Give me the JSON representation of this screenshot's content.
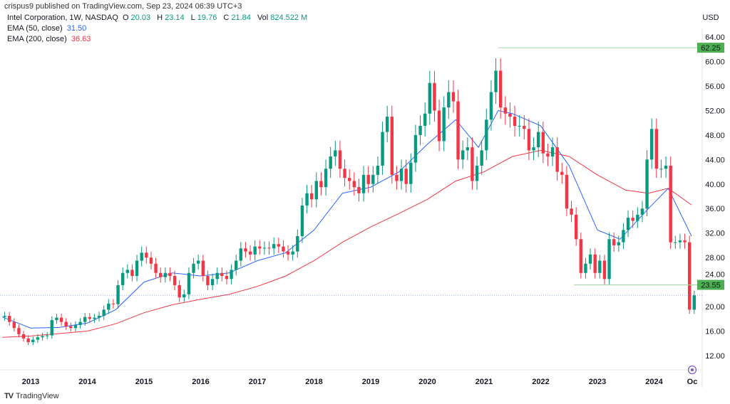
{
  "header": {
    "published": "crispus9 published on TradingView.com, Sep 23, 2024 06:39 UTC+3"
  },
  "legend": {
    "symbol": "Intel Corporation, 1W, NASDAQ",
    "o_label": "O",
    "o": "20.03",
    "h_label": "H",
    "h": "23.14",
    "l_label": "L",
    "l": "19.76",
    "c_label": "C",
    "c": "21.84",
    "vol_label": "Vol",
    "vol": "824.522 M",
    "ema50_label": "EMA (50, close)",
    "ema50": "31.50",
    "ema200_label": "EMA (200, close)",
    "ema200": "36.63"
  },
  "footer": {
    "brand": "TradingView"
  },
  "colors": {
    "up": "#089981",
    "down": "#f23645",
    "ema50": "#2962ff",
    "ema200": "#f23645",
    "level": "#4caf50",
    "last": "#2962ff"
  },
  "chart_data": {
    "type": "candlestick",
    "currency": "USD",
    "ylim": [
      10,
      66
    ],
    "y_ticks": [
      "64.00",
      "60.00",
      "56.00",
      "52.00",
      "48.00",
      "44.00",
      "40.00",
      "36.00",
      "32.00",
      "28.00",
      "24.00",
      "20.00",
      "16.00",
      "12.00"
    ],
    "x_ticks": [
      "2013",
      "2014",
      "2015",
      "2016",
      "2017",
      "2018",
      "2019",
      "2020",
      "2021",
      "2022",
      "2023",
      "2024",
      "Oc"
    ],
    "start": "2012-07",
    "monthly_close": [
      18.5,
      17.5,
      16.5,
      15.5,
      14.8,
      14.2,
      14.6,
      15.0,
      15.2,
      15.3,
      17.8,
      18.2,
      17.5,
      16.8,
      16.5,
      17.0,
      17.5,
      18.3,
      18.0,
      18.2,
      18.5,
      19.5,
      20.5,
      20.4,
      23.5,
      25.5,
      26.0,
      25.0,
      27.5,
      28.8,
      28.0,
      27.0,
      25.5,
      24.8,
      25.5,
      25.0,
      23.5,
      21.5,
      22.0,
      25.5,
      27.0,
      27.5,
      25.0,
      23.5,
      24.5,
      25.5,
      25.0,
      24.5,
      26.0,
      27.5,
      29.5,
      29.0,
      28.5,
      29.8,
      29.5,
      29.6,
      29.5,
      30.2,
      29.8,
      29.0,
      28.5,
      29.0,
      31.5,
      36.5,
      38.5,
      37.5,
      40.5,
      39.5,
      42.5,
      44.5,
      45.5,
      42.5,
      41.0,
      40.5,
      39.5,
      38.5,
      41.5,
      40.0,
      41.5,
      43.0,
      48.5,
      51.0,
      41.5,
      40.5,
      42.5,
      40.0,
      43.5,
      48.0,
      49.5,
      51.5,
      56.5,
      52.0,
      47.0,
      52.5,
      55.0,
      53.5,
      44.0,
      45.5,
      46.0,
      40.5,
      43.0,
      45.5,
      50.5,
      55.0,
      58.5,
      52.5,
      51.5,
      51.0,
      49.5,
      49.5,
      49.0,
      45.5,
      46.0,
      48.5,
      45.0,
      44.5,
      46.0,
      42.0,
      41.5,
      36.0,
      35.0,
      31.0,
      25.5,
      27.0,
      28.5,
      25.5,
      27.5,
      24.5,
      31.0,
      30.0,
      30.5,
      32.5,
      34.5,
      34.0,
      35.0,
      36.0,
      44.0,
      49.0,
      42.5,
      42.5,
      43.0,
      30.5,
      30.5,
      30.8,
      30.5,
      19.5,
      21.84
    ],
    "ema50": {
      "t": [
        2012.5,
        2013.0,
        2013.5,
        2014.0,
        2014.5,
        2015.0,
        2015.5,
        2016.0,
        2016.5,
        2017.0,
        2017.5,
        2018.0,
        2018.5,
        2019.0,
        2019.5,
        2020.0,
        2020.5,
        2020.9,
        2021.25,
        2021.5,
        2022.0,
        2022.5,
        2023.0,
        2023.4,
        2023.9,
        2024.25,
        2024.66
      ],
      "v": [
        18.3,
        16.5,
        16.6,
        17.3,
        19.5,
        24.0,
        25.5,
        25.0,
        25.5,
        27.5,
        28.8,
        32.5,
        38.5,
        39.5,
        42.0,
        46.5,
        50.5,
        46.0,
        52.0,
        51.5,
        49.5,
        43.0,
        32.5,
        31.0,
        36.0,
        39.3,
        31.5
      ]
    },
    "ema200": {
      "t": [
        2012.5,
        2013.0,
        2013.5,
        2014.0,
        2014.5,
        2015.0,
        2015.5,
        2016.0,
        2016.5,
        2017.0,
        2017.5,
        2018.0,
        2018.5,
        2019.0,
        2019.5,
        2020.0,
        2020.5,
        2021.0,
        2021.5,
        2022.0,
        2022.5,
        2023.0,
        2023.5,
        2023.9,
        2024.25,
        2024.66
      ],
      "v": [
        15.0,
        15.2,
        15.6,
        16.0,
        17.2,
        19.0,
        20.3,
        21.2,
        22.0,
        23.3,
        25.0,
        27.5,
        30.5,
        33.0,
        35.2,
        37.5,
        40.5,
        42.0,
        44.5,
        45.5,
        44.5,
        41.5,
        39.0,
        38.5,
        39.3,
        36.6
      ]
    },
    "levels": [
      {
        "value": 62.25,
        "label": "62.25",
        "from": "2021-04"
      },
      {
        "value": 23.55,
        "label": "23.55",
        "from": "2022-08"
      }
    ],
    "last_price": 21.84
  }
}
